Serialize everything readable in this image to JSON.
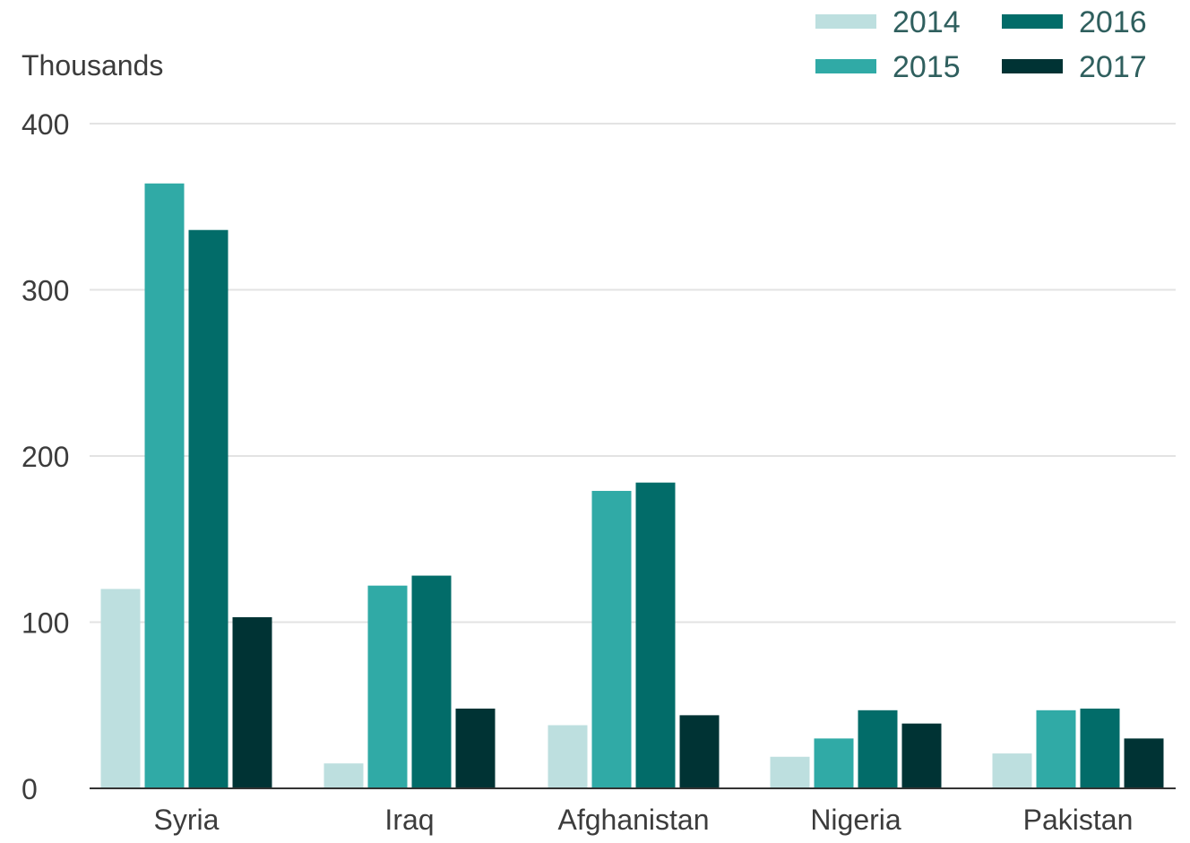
{
  "chart_data": {
    "type": "bar",
    "ylabel": "Thousands",
    "categories": [
      "Syria",
      "Iraq",
      "Afghanistan",
      "Nigeria",
      "Pakistan"
    ],
    "series": [
      {
        "name": "2014",
        "color": "#bddfdf",
        "values": [
          120,
          15,
          38,
          19,
          21
        ]
      },
      {
        "name": "2015",
        "color": "#30aaa6",
        "values": [
          364,
          122,
          179,
          30,
          47
        ]
      },
      {
        "name": "2016",
        "color": "#026c69",
        "values": [
          336,
          128,
          184,
          47,
          48
        ]
      },
      {
        "name": "2017",
        "color": "#003334",
        "values": [
          103,
          48,
          44,
          39,
          30
        ]
      }
    ],
    "ylim": [
      0,
      400
    ],
    "yticks": [
      "0",
      "100",
      "200",
      "300",
      "400"
    ],
    "grid": true,
    "legend_position": "top-right"
  }
}
